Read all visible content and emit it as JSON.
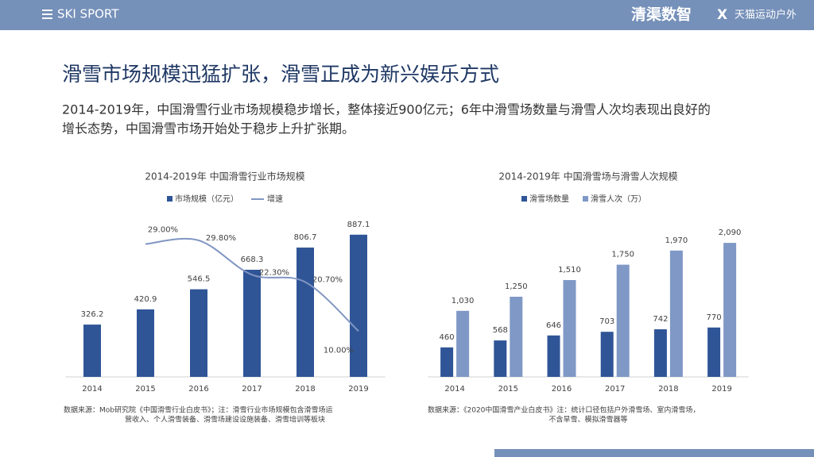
{
  "header": {
    "brand": "SKI SPORT",
    "partner1": "清渠数智",
    "x": "X",
    "partner2": "天猫运动户外"
  },
  "title": "滑雪市场规模迅猛扩张，滑雪正成为新兴娱乐方式",
  "subtitle": [
    "2014-2019年，中国滑雪行业市场规模稳步增长，整体接近900亿元；6年中滑雪场数量与滑雪人次均表现出良好的",
    "增长态势，中国滑雪市场开始处于稳步上升扩张期。"
  ],
  "chart_data": [
    {
      "type": "bar_line",
      "title": "2014-2019年 中国滑雪行业市场规模",
      "categories": [
        "2014",
        "2015",
        "2016",
        "2017",
        "2018",
        "2019"
      ],
      "series": [
        {
          "name": "市场规模（亿元）",
          "type": "bar",
          "color": "#2f5597",
          "values": [
            326.2,
            420.9,
            546.5,
            668.3,
            806.7,
            887.1
          ]
        },
        {
          "name": "增速",
          "type": "line",
          "axis": "y2",
          "color": "#8196c2",
          "values": [
            null,
            29,
            29.8,
            22.3,
            20.7,
            10
          ],
          "value_labels": [
            null,
            "29.00%",
            "29.80%",
            "22.30%",
            "20.70%",
            "10.00%"
          ]
        }
      ],
      "ylim": [
        0,
        1000
      ],
      "y2lim": [
        0,
        35
      ],
      "source": [
        "数据来源：Mob研究院《中国滑雪行业白皮书》；注：滑雪行业市场规模包含滑雪场运",
        "营收入、个人滑雪装备、滑雪场建设设施装备、滑雪培训等板块"
      ]
    },
    {
      "type": "bar",
      "title": "2014-2019年 中国滑雪场与滑雪人次规模",
      "categories": [
        "2014",
        "2015",
        "2016",
        "2017",
        "2018",
        "2019"
      ],
      "series": [
        {
          "name": "滑雪场数量",
          "type": "bar",
          "color": "#2f5597",
          "values": [
            460,
            568,
            646,
            703,
            742,
            770
          ]
        },
        {
          "name": "滑雪人次（万）",
          "type": "bar",
          "color": "#7f98c6",
          "values": [
            1030,
            1250,
            1510,
            1750,
            1970,
            2090
          ],
          "value_labels": [
            "1,030",
            "1,250",
            "1,510",
            "1,750",
            "1,970",
            "2,090"
          ]
        }
      ],
      "ylim": [
        0,
        2500
      ],
      "source": [
        "数据来源：《2020中国滑雪产业白皮书》注：统计口径包括户外滑雪场、室内滑雪场，",
        "不含旱雪、模拟滑雪器等"
      ]
    }
  ]
}
